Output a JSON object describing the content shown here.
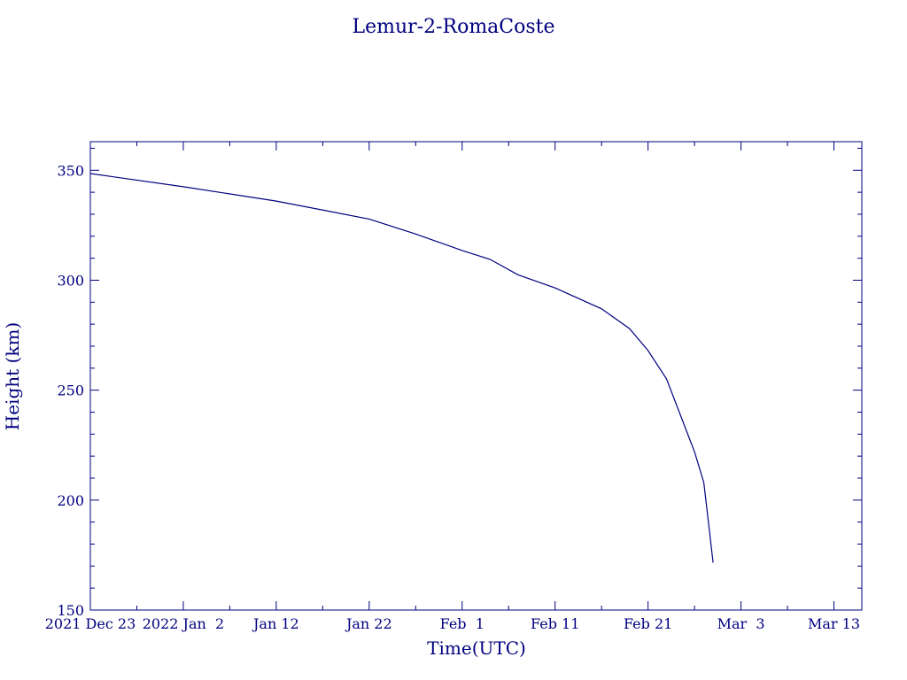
{
  "chart_data": {
    "type": "line",
    "title": "Lemur-2-RomaCoste",
    "xlabel": "Time(UTC)",
    "ylabel": "Height (km)",
    "x_ticks": [
      {
        "date": "2021-12-23",
        "label": "2021 Dec 23"
      },
      {
        "date": "2022-01-02",
        "label": "2022 Jan  2"
      },
      {
        "date": "2022-01-12",
        "label": "Jan 12"
      },
      {
        "date": "2022-01-22",
        "label": "Jan 22"
      },
      {
        "date": "2022-02-01",
        "label": "Feb  1"
      },
      {
        "date": "2022-02-11",
        "label": "Feb 11"
      },
      {
        "date": "2022-02-21",
        "label": "Feb 21"
      },
      {
        "date": "2022-03-03",
        "label": "Mar  3"
      },
      {
        "date": "2022-03-13",
        "label": "Mar 13"
      }
    ],
    "y_ticks": [
      150,
      200,
      250,
      300,
      350
    ],
    "xlim": [
      "2021-12-23",
      "2022-03-16"
    ],
    "ylim": [
      150,
      363
    ],
    "grid": false,
    "colors": {
      "axis": "#00007f",
      "line": "#00007f",
      "background": "#ffffff"
    },
    "series": [
      {
        "points": [
          [
            "2021-12-23",
            348.5
          ],
          [
            "2022-01-02",
            342.5
          ],
          [
            "2022-01-12",
            336.0
          ],
          [
            "2022-01-22",
            327.8
          ],
          [
            "2022-01-27",
            321.0
          ],
          [
            "2022-02-01",
            313.5
          ],
          [
            "2022-02-04",
            309.5
          ],
          [
            "2022-02-07",
            302.5
          ],
          [
            "2022-02-11",
            296.5
          ],
          [
            "2022-02-16",
            287.0
          ],
          [
            "2022-02-19",
            278.0
          ],
          [
            "2022-02-21",
            268.0
          ],
          [
            "2022-02-23",
            255.0
          ],
          [
            "2022-02-25",
            233.0
          ],
          [
            "2022-02-26",
            222.0
          ],
          [
            "2022-02-27",
            208.0
          ],
          [
            "2022-02-27T12:00",
            190.0
          ],
          [
            "2022-02-28",
            171.5
          ]
        ]
      }
    ]
  }
}
